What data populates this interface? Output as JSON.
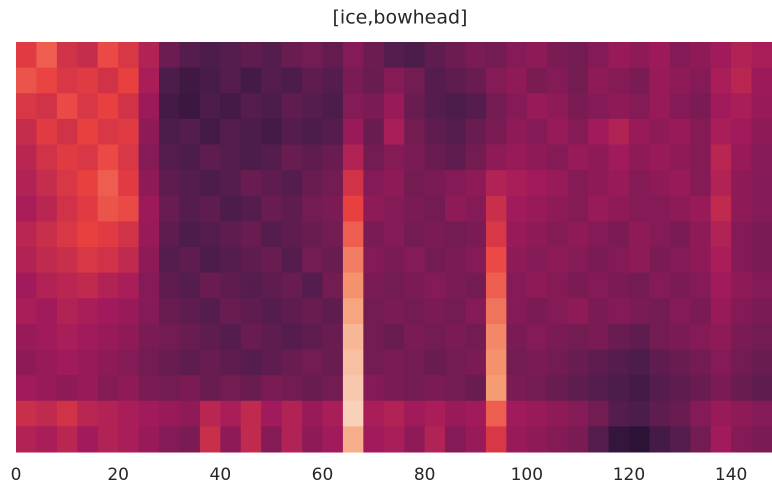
{
  "chart_data": {
    "type": "heatmap",
    "title": "[ice,bowhead]",
    "xlim": [
      0,
      148
    ],
    "xticks": [
      0,
      20,
      40,
      60,
      80,
      100,
      120,
      140
    ],
    "zlim": [
      10,
      100
    ],
    "colormap": [
      "#03051a",
      "#4c1d4b",
      "#a11a5b",
      "#e83f3f",
      "#f69c73",
      "#faebdd"
    ],
    "z": [
      [
        62,
        70,
        58,
        55,
        66,
        60,
        50,
        35,
        30,
        28,
        30,
        32,
        30,
        34,
        36,
        33,
        40,
        35,
        30,
        28,
        32,
        35,
        38,
        36,
        40,
        42,
        38,
        36,
        40,
        44,
        42,
        45,
        40,
        42,
        46,
        50,
        48
      ],
      [
        68,
        65,
        60,
        62,
        58,
        64,
        48,
        28,
        25,
        27,
        30,
        26,
        30,
        28,
        32,
        30,
        38,
        34,
        40,
        36,
        30,
        32,
        34,
        40,
        42,
        38,
        40,
        36,
        42,
        40,
        38,
        44,
        42,
        40,
        48,
        52,
        45
      ],
      [
        60,
        58,
        66,
        60,
        64,
        58,
        45,
        26,
        24,
        28,
        26,
        30,
        28,
        32,
        30,
        28,
        40,
        38,
        44,
        34,
        30,
        28,
        30,
        36,
        40,
        44,
        42,
        38,
        40,
        42,
        40,
        44,
        40,
        38,
        46,
        48,
        44
      ],
      [
        55,
        62,
        58,
        64,
        60,
        62,
        42,
        28,
        30,
        26,
        30,
        28,
        26,
        30,
        28,
        30,
        44,
        34,
        48,
        36,
        32,
        30,
        34,
        38,
        42,
        40,
        44,
        40,
        46,
        50,
        44,
        42,
        44,
        40,
        48,
        46,
        42
      ],
      [
        52,
        58,
        62,
        60,
        66,
        60,
        40,
        30,
        28,
        32,
        30,
        28,
        30,
        34,
        32,
        34,
        50,
        36,
        40,
        38,
        34,
        32,
        36,
        42,
        44,
        42,
        40,
        44,
        42,
        46,
        42,
        44,
        42,
        40,
        52,
        44,
        40
      ],
      [
        50,
        55,
        60,
        64,
        70,
        62,
        42,
        32,
        30,
        28,
        30,
        34,
        32,
        30,
        34,
        36,
        58,
        40,
        42,
        36,
        38,
        40,
        42,
        50,
        48,
        46,
        44,
        40,
        42,
        44,
        40,
        42,
        44,
        40,
        50,
        42,
        40
      ],
      [
        48,
        52,
        58,
        62,
        68,
        66,
        45,
        34,
        30,
        32,
        28,
        30,
        34,
        32,
        36,
        38,
        64,
        42,
        40,
        38,
        36,
        42,
        40,
        56,
        46,
        44,
        42,
        40,
        44,
        42,
        40,
        40,
        42,
        44,
        54,
        42,
        40
      ],
      [
        52,
        56,
        60,
        64,
        62,
        58,
        44,
        32,
        28,
        30,
        32,
        34,
        30,
        32,
        34,
        36,
        70,
        38,
        40,
        36,
        38,
        36,
        38,
        60,
        44,
        42,
        40,
        42,
        40,
        38,
        42,
        40,
        38,
        42,
        50,
        40,
        38
      ],
      [
        50,
        54,
        56,
        60,
        58,
        54,
        42,
        30,
        32,
        28,
        30,
        32,
        34,
        30,
        36,
        34,
        76,
        40,
        38,
        40,
        36,
        38,
        40,
        66,
        42,
        40,
        42,
        40,
        38,
        40,
        42,
        38,
        40,
        42,
        48,
        40,
        38
      ],
      [
        46,
        50,
        52,
        54,
        50,
        48,
        40,
        32,
        30,
        34,
        32,
        30,
        32,
        34,
        30,
        36,
        80,
        38,
        36,
        38,
        40,
        38,
        36,
        70,
        40,
        42,
        40,
        38,
        40,
        38,
        36,
        40,
        38,
        40,
        46,
        42,
        40
      ],
      [
        48,
        46,
        50,
        48,
        46,
        44,
        40,
        34,
        32,
        30,
        34,
        32,
        30,
        32,
        34,
        32,
        84,
        36,
        38,
        36,
        38,
        36,
        40,
        74,
        40,
        38,
        40,
        42,
        38,
        40,
        38,
        36,
        40,
        38,
        44,
        40,
        38
      ],
      [
        44,
        46,
        48,
        46,
        44,
        42,
        38,
        36,
        34,
        32,
        30,
        34,
        32,
        30,
        32,
        34,
        88,
        36,
        34,
        38,
        36,
        38,
        36,
        78,
        38,
        40,
        38,
        36,
        38,
        34,
        32,
        36,
        38,
        40,
        42,
        38,
        36
      ],
      [
        42,
        44,
        46,
        44,
        42,
        40,
        36,
        34,
        32,
        34,
        32,
        30,
        32,
        34,
        36,
        34,
        90,
        36,
        38,
        36,
        34,
        36,
        38,
        80,
        36,
        38,
        36,
        34,
        32,
        30,
        28,
        32,
        34,
        36,
        40,
        36,
        34
      ],
      [
        46,
        44,
        42,
        44,
        40,
        42,
        38,
        36,
        38,
        34,
        36,
        34,
        38,
        36,
        34,
        36,
        92,
        40,
        38,
        36,
        38,
        36,
        34,
        82,
        38,
        36,
        34,
        32,
        30,
        28,
        26,
        30,
        32,
        34,
        38,
        34,
        32
      ],
      [
        56,
        54,
        58,
        52,
        50,
        48,
        46,
        44,
        42,
        52,
        48,
        54,
        46,
        50,
        44,
        48,
        94,
        48,
        50,
        46,
        48,
        44,
        46,
        70,
        46,
        44,
        42,
        40,
        36,
        30,
        28,
        32,
        34,
        40,
        44,
        42,
        40
      ],
      [
        50,
        48,
        52,
        46,
        50,
        48,
        44,
        40,
        38,
        56,
        42,
        54,
        40,
        50,
        42,
        46,
        86,
        46,
        48,
        42,
        50,
        40,
        44,
        60,
        44,
        42,
        40,
        38,
        30,
        22,
        20,
        26,
        30,
        36,
        46,
        40,
        38
      ]
    ]
  }
}
